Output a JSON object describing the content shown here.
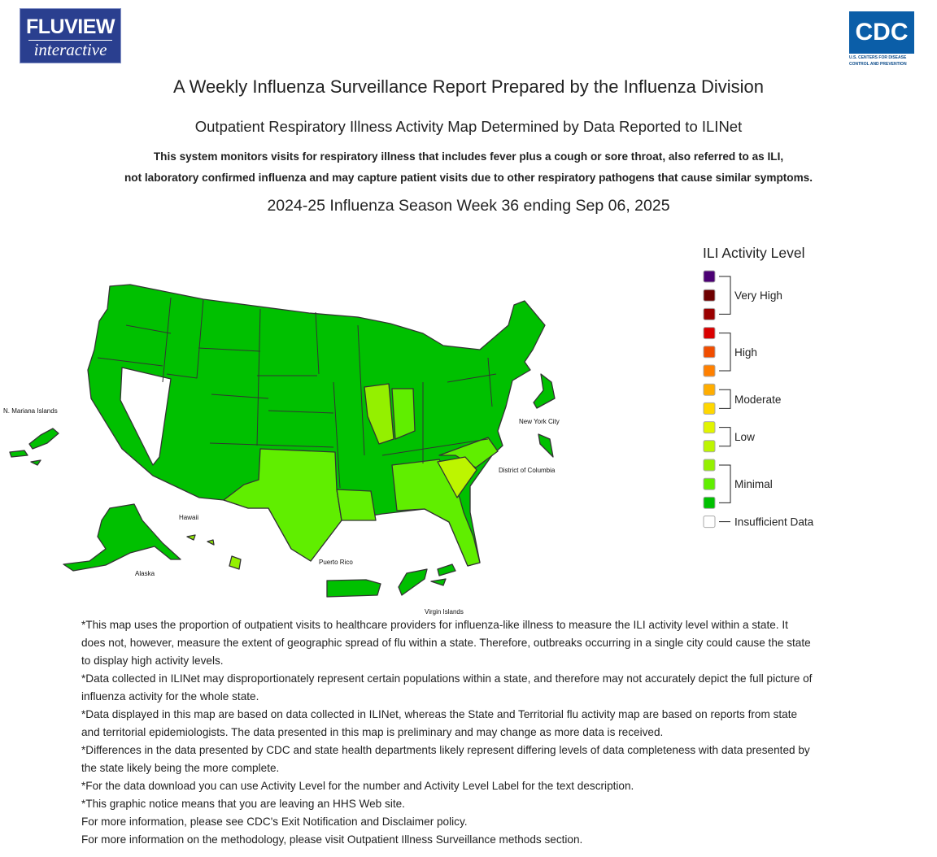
{
  "header": {
    "logo_left": {
      "line1": "FLUVIEW",
      "line2": "interactive"
    },
    "logo_right": {
      "mark": "CDC",
      "line1": "U.S. CENTERS FOR DISEASE",
      "line2": "CONTROL AND PREVENTION"
    },
    "title": "A Weekly Influenza Surveillance Report Prepared by the Influenza Division",
    "subtitle": "Outpatient Respiratory Illness Activity Map Determined by Data Reported to ILINet",
    "description": [
      "This system monitors visits for respiratory illness that includes fever plus a cough or sore throat, also referred to as ILI,",
      "not laboratory confirmed influenza and may capture patient visits due to other respiratory pathogens that cause similar symptoms."
    ],
    "season": "2024-25 Influenza Season Week 36 ending Sep 06, 2025"
  },
  "map": {
    "labels": [
      "N. Mariana Islands",
      "New York City",
      "District of Columbia",
      "Hawaii",
      "Alaska",
      "Puerto Rico",
      "Virgin Islands"
    ]
  },
  "legend": {
    "title": "ILI Activity Level",
    "colors": [
      "#4b0073",
      "#6e0000",
      "#9a0000",
      "#d90000",
      "#f04d00",
      "#ff8000",
      "#ffad00",
      "#ffd700",
      "#e1f400",
      "#bdf500",
      "#94f000",
      "#60ee00",
      "#00c000",
      "#ffffff"
    ],
    "groups": [
      {
        "label": "Very High",
        "from": 0,
        "to": 2
      },
      {
        "label": "High",
        "from": 3,
        "to": 5
      },
      {
        "label": "Moderate",
        "from": 6,
        "to": 7
      },
      {
        "label": "Low",
        "from": 8,
        "to": 9
      },
      {
        "label": "Minimal",
        "from": 10,
        "to": 12
      },
      {
        "label": "Insufficient Data",
        "from": 13,
        "to": 13
      }
    ]
  },
  "notes": [
    "*This map uses the proportion of outpatient visits to healthcare providers for influenza-like illness to measure the ILI activity level within a state. It does not, however, measure the extent of geographic spread of flu within a state. Therefore, outbreaks occurring in a single city could cause the state to display high activity levels.",
    "*Data collected in ILINet may disproportionately represent certain populations within a state, and therefore may not accurately depict the full picture of influenza activity for the whole state.",
    "*Data displayed in this map are based on data collected in ILINet, whereas the State and Territorial flu activity map are based on reports from state and territorial epidemiologists. The data presented in this map is preliminary and may change as more data is received.",
    "*Differences in the data presented by CDC and state health departments likely represent differing levels of data completeness with data presented by the state likely being the more complete.",
    "*For the data download you can use Activity Level for the number and Activity Level Label for the text description.",
    "*This graphic notice means that you are leaving an HHS Web site.",
    "For more information, please see CDC's Exit Notification and Disclaimer policy.",
    "For more information on the methodology, please visit Outpatient Illness Surveillance methods section."
  ]
}
